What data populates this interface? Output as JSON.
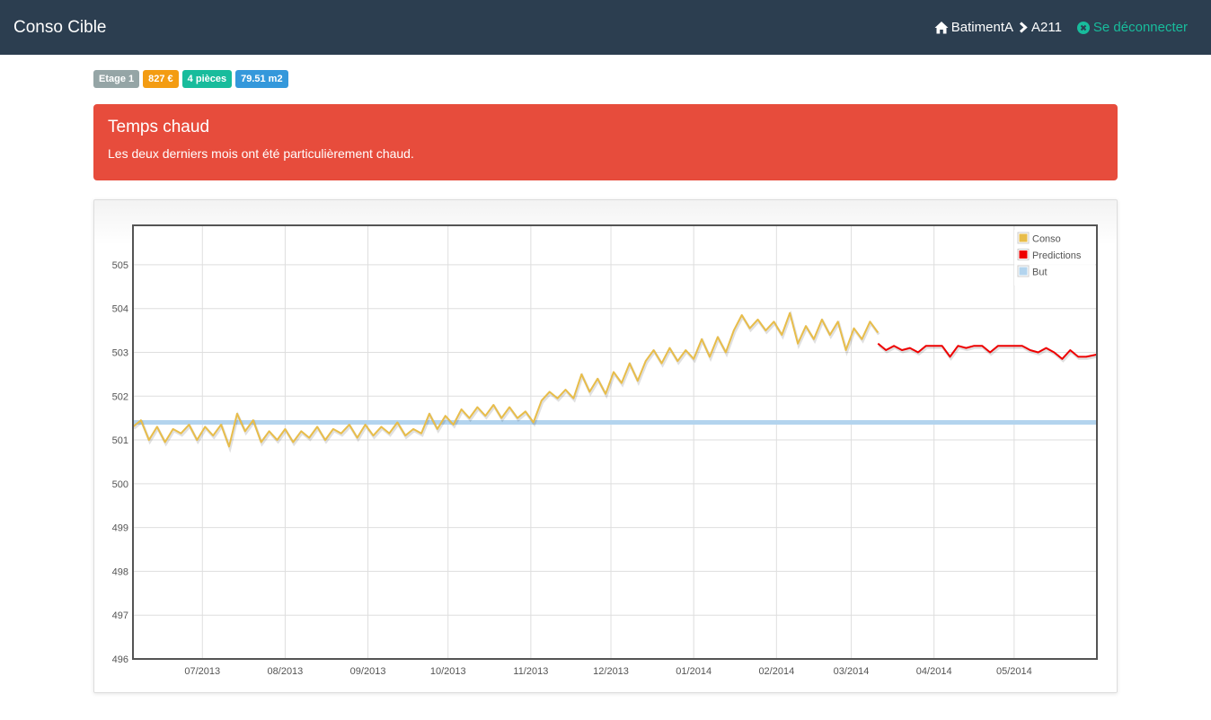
{
  "app": {
    "title": "Conso Cible"
  },
  "nav": {
    "breadcrumb": [
      "BatimentA",
      "A211"
    ],
    "logout_label": "Se déconnecter"
  },
  "badges": [
    {
      "label": "Etage 1",
      "color": "#95a5a6"
    },
    {
      "label": "827 €",
      "color": "#f39c12"
    },
    {
      "label": "4 pièces",
      "color": "#18bc9c"
    },
    {
      "label": "79.51 m2",
      "color": "#3498db"
    }
  ],
  "alert": {
    "title": "Temps chaud",
    "message": "Les deux derniers mois ont été particulièrement chaud.",
    "color": "#e74c3c"
  },
  "chart_data": {
    "type": "line",
    "ylim": [
      496,
      505.9
    ],
    "yticks": [
      496,
      497,
      498,
      499,
      500,
      501,
      502,
      503,
      504,
      505
    ],
    "xlim": [
      "2013-06-05",
      "2014-06-01"
    ],
    "xticks": [
      {
        "date": "2013-07-01",
        "label": "07/2013"
      },
      {
        "date": "2013-08-01",
        "label": "08/2013"
      },
      {
        "date": "2013-09-01",
        "label": "09/2013"
      },
      {
        "date": "2013-10-01",
        "label": "10/2013"
      },
      {
        "date": "2013-11-01",
        "label": "11/2013"
      },
      {
        "date": "2013-12-01",
        "label": "12/2013"
      },
      {
        "date": "2014-01-01",
        "label": "01/2014"
      },
      {
        "date": "2014-02-01",
        "label": "02/2014"
      },
      {
        "date": "2014-03-01",
        "label": "03/2014"
      },
      {
        "date": "2014-04-01",
        "label": "04/2014"
      },
      {
        "date": "2014-05-01",
        "label": "05/2014"
      }
    ],
    "grid": true,
    "legend_position": "top-right",
    "series": [
      {
        "name": "Conso",
        "color": "#e8bd4a",
        "points": [
          [
            "2013-06-05",
            501.3
          ],
          [
            "2013-06-08",
            501.45
          ],
          [
            "2013-06-11",
            501.0
          ],
          [
            "2013-06-14",
            501.3
          ],
          [
            "2013-06-17",
            500.95
          ],
          [
            "2013-06-20",
            501.25
          ],
          [
            "2013-06-23",
            501.15
          ],
          [
            "2013-06-26",
            501.35
          ],
          [
            "2013-06-29",
            501.0
          ],
          [
            "2013-07-02",
            501.3
          ],
          [
            "2013-07-05",
            501.1
          ],
          [
            "2013-07-08",
            501.35
          ],
          [
            "2013-07-11",
            500.85
          ],
          [
            "2013-07-14",
            501.6
          ],
          [
            "2013-07-17",
            501.2
          ],
          [
            "2013-07-20",
            501.45
          ],
          [
            "2013-07-23",
            500.95
          ],
          [
            "2013-07-26",
            501.2
          ],
          [
            "2013-07-29",
            501.0
          ],
          [
            "2013-08-01",
            501.25
          ],
          [
            "2013-08-04",
            500.95
          ],
          [
            "2013-08-07",
            501.2
          ],
          [
            "2013-08-10",
            501.05
          ],
          [
            "2013-08-13",
            501.3
          ],
          [
            "2013-08-16",
            501.0
          ],
          [
            "2013-08-19",
            501.25
          ],
          [
            "2013-08-22",
            501.15
          ],
          [
            "2013-08-25",
            501.35
          ],
          [
            "2013-08-28",
            501.05
          ],
          [
            "2013-08-31",
            501.35
          ],
          [
            "2013-09-03",
            501.1
          ],
          [
            "2013-09-06",
            501.3
          ],
          [
            "2013-09-09",
            501.15
          ],
          [
            "2013-09-12",
            501.4
          ],
          [
            "2013-09-15",
            501.1
          ],
          [
            "2013-09-18",
            501.25
          ],
          [
            "2013-09-21",
            501.15
          ],
          [
            "2013-09-24",
            501.6
          ],
          [
            "2013-09-27",
            501.25
          ],
          [
            "2013-09-30",
            501.55
          ],
          [
            "2013-10-03",
            501.35
          ],
          [
            "2013-10-06",
            501.7
          ],
          [
            "2013-10-09",
            501.5
          ],
          [
            "2013-10-12",
            501.75
          ],
          [
            "2013-10-15",
            501.55
          ],
          [
            "2013-10-18",
            501.8
          ],
          [
            "2013-10-21",
            501.5
          ],
          [
            "2013-10-24",
            501.75
          ],
          [
            "2013-10-27",
            501.5
          ],
          [
            "2013-10-30",
            501.65
          ],
          [
            "2013-11-02",
            501.4
          ],
          [
            "2013-11-05",
            501.9
          ],
          [
            "2013-11-08",
            502.1
          ],
          [
            "2013-11-11",
            501.95
          ],
          [
            "2013-11-14",
            502.15
          ],
          [
            "2013-11-17",
            501.95
          ],
          [
            "2013-11-20",
            502.5
          ],
          [
            "2013-11-23",
            502.1
          ],
          [
            "2013-11-26",
            502.4
          ],
          [
            "2013-11-29",
            502.05
          ],
          [
            "2013-12-02",
            502.55
          ],
          [
            "2013-12-05",
            502.3
          ],
          [
            "2013-12-08",
            502.75
          ],
          [
            "2013-12-11",
            502.35
          ],
          [
            "2013-12-14",
            502.8
          ],
          [
            "2013-12-17",
            503.05
          ],
          [
            "2013-12-20",
            502.75
          ],
          [
            "2013-12-23",
            503.1
          ],
          [
            "2013-12-26",
            502.8
          ],
          [
            "2013-12-29",
            503.05
          ],
          [
            "2014-01-01",
            502.85
          ],
          [
            "2014-01-04",
            503.3
          ],
          [
            "2014-01-07",
            502.9
          ],
          [
            "2014-01-10",
            503.35
          ],
          [
            "2014-01-13",
            503.0
          ],
          [
            "2014-01-16",
            503.5
          ],
          [
            "2014-01-19",
            503.85
          ],
          [
            "2014-01-22",
            503.55
          ],
          [
            "2014-01-25",
            503.75
          ],
          [
            "2014-01-28",
            503.5
          ],
          [
            "2014-01-31",
            503.7
          ],
          [
            "2014-02-03",
            503.4
          ],
          [
            "2014-02-06",
            503.9
          ],
          [
            "2014-02-09",
            503.2
          ],
          [
            "2014-02-12",
            503.6
          ],
          [
            "2014-02-15",
            503.3
          ],
          [
            "2014-02-18",
            503.75
          ],
          [
            "2014-02-21",
            503.4
          ],
          [
            "2014-02-24",
            503.7
          ],
          [
            "2014-02-27",
            503.05
          ],
          [
            "2014-03-02",
            503.55
          ],
          [
            "2014-03-05",
            503.3
          ],
          [
            "2014-03-08",
            503.7
          ],
          [
            "2014-03-11",
            503.45
          ]
        ]
      },
      {
        "name": "Predictions",
        "color": "#ee0000",
        "points": [
          [
            "2014-03-11",
            503.2
          ],
          [
            "2014-03-14",
            503.05
          ],
          [
            "2014-03-17",
            503.15
          ],
          [
            "2014-03-20",
            503.05
          ],
          [
            "2014-03-23",
            503.1
          ],
          [
            "2014-03-26",
            503.0
          ],
          [
            "2014-03-29",
            503.15
          ],
          [
            "2014-04-01",
            503.15
          ],
          [
            "2014-04-04",
            503.15
          ],
          [
            "2014-04-07",
            502.9
          ],
          [
            "2014-04-10",
            503.15
          ],
          [
            "2014-04-13",
            503.1
          ],
          [
            "2014-04-16",
            503.15
          ],
          [
            "2014-04-19",
            503.15
          ],
          [
            "2014-04-22",
            503.0
          ],
          [
            "2014-04-25",
            503.15
          ],
          [
            "2014-04-28",
            503.15
          ],
          [
            "2014-05-01",
            503.15
          ],
          [
            "2014-05-04",
            503.15
          ],
          [
            "2014-05-07",
            503.05
          ],
          [
            "2014-05-10",
            503.0
          ],
          [
            "2014-05-13",
            503.1
          ],
          [
            "2014-05-16",
            503.0
          ],
          [
            "2014-05-19",
            502.85
          ],
          [
            "2014-05-22",
            503.05
          ],
          [
            "2014-05-25",
            502.9
          ],
          [
            "2014-05-28",
            502.9
          ],
          [
            "2014-06-01",
            502.95
          ]
        ]
      },
      {
        "name": "But",
        "color": "#b3d4ee",
        "points": [
          [
            "2013-06-05",
            501.4
          ],
          [
            "2014-06-01",
            501.4
          ]
        ]
      }
    ]
  }
}
